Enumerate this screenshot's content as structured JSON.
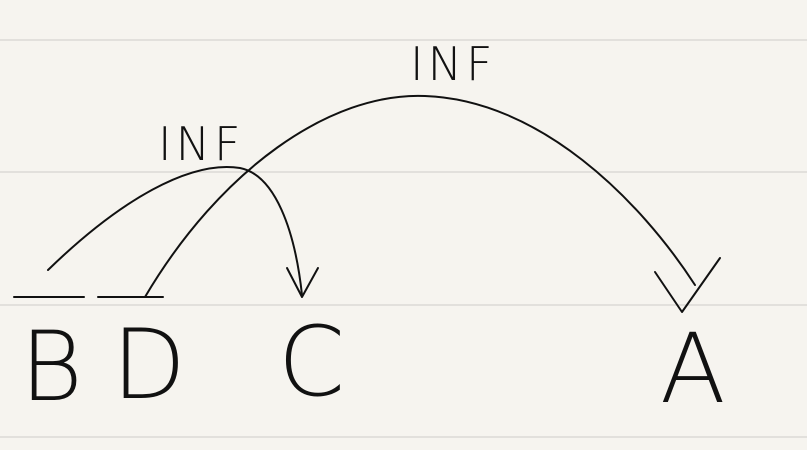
{
  "nodes": [
    {
      "label": "B"
    },
    {
      "label": "D"
    },
    {
      "label": "C"
    },
    {
      "label": "A"
    }
  ],
  "edges": [
    {
      "label": "INF"
    },
    {
      "label": "INF"
    }
  ]
}
